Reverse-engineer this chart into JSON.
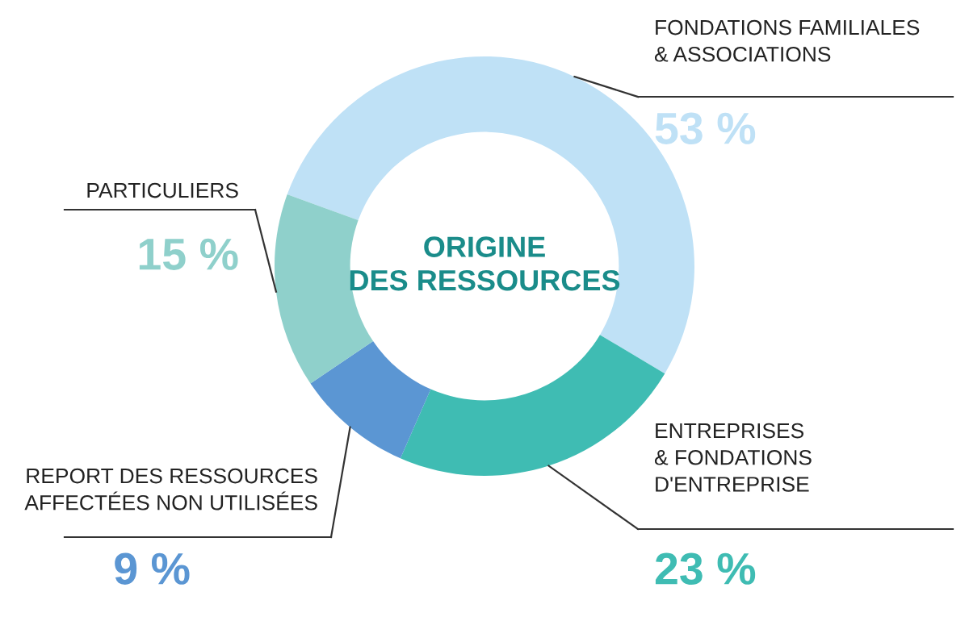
{
  "chart_data": {
    "type": "donut",
    "title": "ORIGINE\nDES RESSOURCES",
    "categories": [
      "FONDATIONS FAMILIALES\n& ASSOCIATIONS",
      "ENTREPRISES\n& FONDATIONS\nD'ENTREPRISE",
      "REPORT DES RESSOURCES\nAFFECTÉES NON UTILISÉES",
      "PARTICULIERS"
    ],
    "values": [
      53,
      23,
      9,
      15
    ],
    "value_labels": [
      "53 %",
      "23 %",
      "9 %",
      "15 %"
    ],
    "colors": [
      "#bfe1f6",
      "#3fbcb3",
      "#5b96d3",
      "#8fd0cb"
    ]
  }
}
